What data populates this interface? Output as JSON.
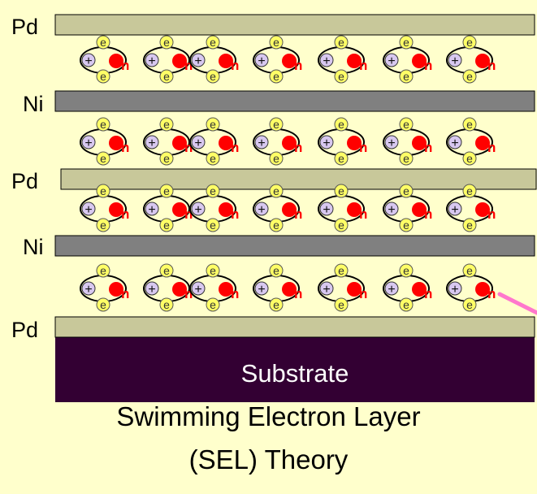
{
  "layers": [
    {
      "label": "Pd",
      "material": "palladium"
    },
    {
      "label": "Ni",
      "material": "nickel"
    },
    {
      "label": "Pd",
      "material": "palladium"
    },
    {
      "label": "Ni",
      "material": "nickel"
    },
    {
      "label": "Pd",
      "material": "palladium"
    }
  ],
  "substrate": {
    "label": "Substrate"
  },
  "particles": {
    "electron_symbol": "e",
    "proton_symbol": "+",
    "neutron_symbol": "n",
    "units_per_row": 7,
    "rows": 4
  },
  "caption": {
    "line1": "Swimming Electron Layer",
    "line2": "(SEL) Theory"
  },
  "colors": {
    "background": "#ffffcc",
    "palladium": "#c8c89a",
    "nickel": "#808080",
    "substrate": "#330033",
    "electron": "#ffff66",
    "proton": "#d8c8f0",
    "neutron": "#ff0000",
    "arrow": "#ff77cc"
  }
}
